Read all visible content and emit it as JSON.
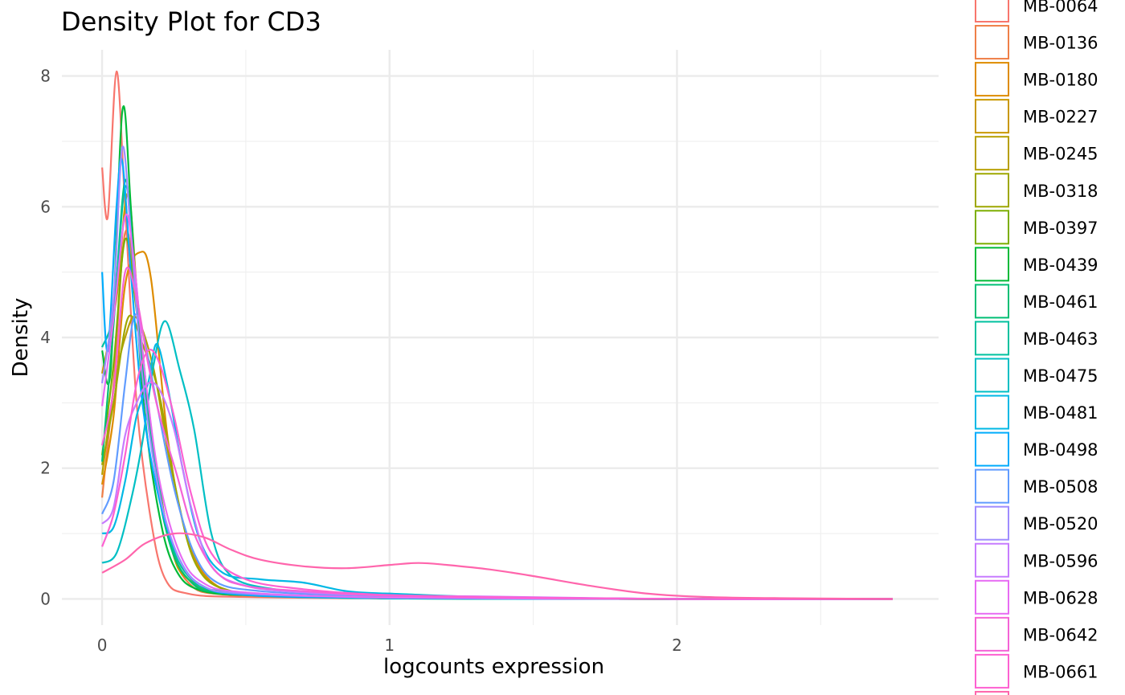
{
  "chart_data": {
    "type": "line",
    "title": "Density Plot for CD3",
    "xlabel": "logcounts expression",
    "ylabel": "Density",
    "xlim": [
      -0.14,
      2.91
    ],
    "ylim": [
      -0.4,
      8.4
    ],
    "x_ticks": [
      0,
      1,
      2
    ],
    "y_ticks": [
      0,
      2,
      4,
      6,
      8
    ],
    "grid": true,
    "legend_position": "right",
    "series": [
      {
        "name": "MB-0064",
        "color": "#F8766D",
        "points": [
          [
            0,
            6.6
          ],
          [
            0.02,
            5.85
          ],
          [
            0.05,
            8.07
          ],
          [
            0.08,
            6.0
          ],
          [
            0.12,
            3.0
          ],
          [
            0.17,
            1.2
          ],
          [
            0.22,
            0.3
          ],
          [
            0.3,
            0.08
          ],
          [
            0.5,
            0.03
          ],
          [
            1.0,
            0.01
          ],
          [
            2.0,
            0.0
          ],
          [
            2.75,
            0.0
          ]
        ]
      },
      {
        "name": "MB-0136",
        "color": "#EF7F48",
        "points": [
          [
            0,
            1.55
          ],
          [
            0.04,
            3.3
          ],
          [
            0.08,
            5.6
          ],
          [
            0.12,
            4.6
          ],
          [
            0.17,
            2.6
          ],
          [
            0.23,
            1.0
          ],
          [
            0.3,
            0.25
          ],
          [
            0.45,
            0.06
          ],
          [
            1.0,
            0.01
          ],
          [
            2.0,
            0.0
          ],
          [
            2.75,
            0.0
          ]
        ]
      },
      {
        "name": "MB-0180",
        "color": "#DE8C00",
        "points": [
          [
            0,
            1.75
          ],
          [
            0.04,
            2.8
          ],
          [
            0.08,
            4.8
          ],
          [
            0.13,
            5.3
          ],
          [
            0.17,
            4.9
          ],
          [
            0.23,
            2.4
          ],
          [
            0.3,
            0.9
          ],
          [
            0.4,
            0.2
          ],
          [
            0.6,
            0.06
          ],
          [
            1.0,
            0.02
          ],
          [
            2.0,
            0.0
          ],
          [
            2.75,
            0.0
          ]
        ]
      },
      {
        "name": "MB-0227",
        "color": "#C99800",
        "points": [
          [
            0,
            3.45
          ],
          [
            0.05,
            4.6
          ],
          [
            0.09,
            6.2
          ],
          [
            0.13,
            4.2
          ],
          [
            0.18,
            2.3
          ],
          [
            0.24,
            0.8
          ],
          [
            0.3,
            0.3
          ],
          [
            0.45,
            0.08
          ],
          [
            1.0,
            0.01
          ],
          [
            2.0,
            0.0
          ],
          [
            2.75,
            0.0
          ]
        ]
      },
      {
        "name": "MB-0245",
        "color": "#B79F00",
        "points": [
          [
            0,
            1.9
          ],
          [
            0.04,
            3.2
          ],
          [
            0.08,
            4.0
          ],
          [
            0.12,
            4.3
          ],
          [
            0.18,
            3.5
          ],
          [
            0.24,
            2.0
          ],
          [
            0.32,
            0.6
          ],
          [
            0.42,
            0.15
          ],
          [
            0.6,
            0.05
          ],
          [
            1.0,
            0.01
          ],
          [
            2.0,
            0.0
          ],
          [
            2.75,
            0.0
          ]
        ]
      },
      {
        "name": "MB-0318",
        "color": "#9EA700",
        "points": [
          [
            0,
            2.05
          ],
          [
            0.04,
            3.0
          ],
          [
            0.09,
            4.3
          ],
          [
            0.14,
            3.9
          ],
          [
            0.2,
            3.1
          ],
          [
            0.26,
            1.6
          ],
          [
            0.33,
            0.5
          ],
          [
            0.45,
            0.12
          ],
          [
            0.7,
            0.04
          ],
          [
            1.0,
            0.01
          ],
          [
            2.0,
            0.0
          ],
          [
            2.75,
            0.0
          ]
        ]
      },
      {
        "name": "MB-0397",
        "color": "#7CAE00",
        "points": [
          [
            0,
            2.2
          ],
          [
            0.04,
            3.6
          ],
          [
            0.08,
            5.5
          ],
          [
            0.12,
            4.4
          ],
          [
            0.17,
            2.6
          ],
          [
            0.23,
            1.0
          ],
          [
            0.3,
            0.3
          ],
          [
            0.45,
            0.08
          ],
          [
            1.0,
            0.01
          ],
          [
            2.0,
            0.0
          ],
          [
            2.75,
            0.0
          ]
        ]
      },
      {
        "name": "MB-0439",
        "color": "#00BA38",
        "points": [
          [
            0,
            3.8
          ],
          [
            0.03,
            3.5
          ],
          [
            0.07,
            7.45
          ],
          [
            0.1,
            6.0
          ],
          [
            0.14,
            3.2
          ],
          [
            0.19,
            1.5
          ],
          [
            0.25,
            0.5
          ],
          [
            0.35,
            0.12
          ],
          [
            0.6,
            0.05
          ],
          [
            1.0,
            0.01
          ],
          [
            2.0,
            0.0
          ],
          [
            2.75,
            0.0
          ]
        ]
      },
      {
        "name": "MB-0461",
        "color": "#00BF74",
        "points": [
          [
            0,
            2.1
          ],
          [
            0.04,
            4.2
          ],
          [
            0.08,
            6.4
          ],
          [
            0.11,
            5.0
          ],
          [
            0.16,
            2.8
          ],
          [
            0.22,
            1.1
          ],
          [
            0.3,
            0.3
          ],
          [
            0.45,
            0.08
          ],
          [
            1.0,
            0.01
          ],
          [
            2.0,
            0.0
          ],
          [
            2.75,
            0.0
          ]
        ]
      },
      {
        "name": "MB-0463",
        "color": "#00C19F",
        "points": [
          [
            0,
            3.85
          ],
          [
            0.04,
            4.4
          ],
          [
            0.08,
            6.3
          ],
          [
            0.11,
            5.2
          ],
          [
            0.16,
            3.0
          ],
          [
            0.22,
            1.2
          ],
          [
            0.3,
            0.35
          ],
          [
            0.45,
            0.1
          ],
          [
            1.0,
            0.01
          ],
          [
            2.0,
            0.0
          ],
          [
            2.75,
            0.0
          ]
        ]
      },
      {
        "name": "MB-0475",
        "color": "#00BFC4",
        "points": [
          [
            0,
            0.55
          ],
          [
            0.05,
            0.7
          ],
          [
            0.1,
            1.5
          ],
          [
            0.14,
            2.4
          ],
          [
            0.18,
            3.6
          ],
          [
            0.22,
            4.25
          ],
          [
            0.27,
            3.5
          ],
          [
            0.32,
            2.6
          ],
          [
            0.38,
            1.0
          ],
          [
            0.45,
            0.35
          ],
          [
            0.6,
            0.15
          ],
          [
            0.8,
            0.1
          ],
          [
            1.0,
            0.08
          ],
          [
            1.4,
            0.02
          ],
          [
            2.0,
            0.0
          ],
          [
            2.75,
            0.0
          ]
        ]
      },
      {
        "name": "MB-0481",
        "color": "#00B8E5",
        "points": [
          [
            0,
            1.0
          ],
          [
            0.04,
            1.1
          ],
          [
            0.08,
            1.8
          ],
          [
            0.12,
            2.8
          ],
          [
            0.16,
            3.3
          ],
          [
            0.19,
            3.9
          ],
          [
            0.23,
            3.2
          ],
          [
            0.28,
            2.0
          ],
          [
            0.34,
            0.9
          ],
          [
            0.42,
            0.4
          ],
          [
            0.55,
            0.3
          ],
          [
            0.7,
            0.25
          ],
          [
            0.85,
            0.12
          ],
          [
            1.0,
            0.08
          ],
          [
            1.3,
            0.03
          ],
          [
            2.0,
            0.0
          ],
          [
            2.75,
            0.0
          ]
        ]
      },
      {
        "name": "MB-0498",
        "color": "#00ACFC",
        "points": [
          [
            0,
            5.0
          ],
          [
            0.02,
            3.8
          ],
          [
            0.05,
            6.0
          ],
          [
            0.07,
            6.7
          ],
          [
            0.1,
            5.0
          ],
          [
            0.14,
            3.0
          ],
          [
            0.2,
            1.5
          ],
          [
            0.27,
            0.6
          ],
          [
            0.35,
            0.2
          ],
          [
            0.5,
            0.06
          ],
          [
            1.0,
            0.01
          ],
          [
            2.0,
            0.0
          ],
          [
            2.75,
            0.0
          ]
        ]
      },
      {
        "name": "MB-0508",
        "color": "#619CFF",
        "points": [
          [
            0,
            1.3
          ],
          [
            0.04,
            1.8
          ],
          [
            0.08,
            3.3
          ],
          [
            0.11,
            4.3
          ],
          [
            0.14,
            4.1
          ],
          [
            0.19,
            3.0
          ],
          [
            0.25,
            1.7
          ],
          [
            0.32,
            0.7
          ],
          [
            0.4,
            0.25
          ],
          [
            0.55,
            0.12
          ],
          [
            0.8,
            0.06
          ],
          [
            1.0,
            0.03
          ],
          [
            2.0,
            0.0
          ],
          [
            2.75,
            0.0
          ]
        ]
      },
      {
        "name": "MB-0520",
        "color": "#9F8CFF",
        "points": [
          [
            0,
            3.3
          ],
          [
            0.04,
            4.6
          ],
          [
            0.07,
            6.9
          ],
          [
            0.1,
            5.6
          ],
          [
            0.14,
            3.4
          ],
          [
            0.2,
            1.6
          ],
          [
            0.27,
            0.6
          ],
          [
            0.35,
            0.2
          ],
          [
            0.5,
            0.08
          ],
          [
            1.0,
            0.02
          ],
          [
            2.0,
            0.0
          ],
          [
            2.75,
            0.0
          ]
        ]
      },
      {
        "name": "MB-0596",
        "color": "#C77CFF",
        "points": [
          [
            0,
            1.15
          ],
          [
            0.04,
            1.4
          ],
          [
            0.08,
            2.5
          ],
          [
            0.12,
            3.0
          ],
          [
            0.16,
            3.3
          ],
          [
            0.2,
            3.2
          ],
          [
            0.25,
            2.6
          ],
          [
            0.31,
            1.4
          ],
          [
            0.38,
            0.5
          ],
          [
            0.5,
            0.2
          ],
          [
            0.7,
            0.1
          ],
          [
            1.0,
            0.05
          ],
          [
            1.3,
            0.04
          ],
          [
            2.0,
            0.0
          ],
          [
            2.75,
            0.0
          ]
        ]
      },
      {
        "name": "MB-0628",
        "color": "#E76BF3",
        "points": [
          [
            0,
            2.95
          ],
          [
            0.04,
            4.3
          ],
          [
            0.08,
            5.85
          ],
          [
            0.11,
            5.2
          ],
          [
            0.15,
            3.4
          ],
          [
            0.2,
            1.8
          ],
          [
            0.27,
            0.7
          ],
          [
            0.35,
            0.25
          ],
          [
            0.5,
            0.1
          ],
          [
            1.0,
            0.02
          ],
          [
            2.0,
            0.0
          ],
          [
            2.75,
            0.0
          ]
        ]
      },
      {
        "name": "MB-0642",
        "color": "#F463D6",
        "points": [
          [
            0,
            2.35
          ],
          [
            0.04,
            3.2
          ],
          [
            0.08,
            5.0
          ],
          [
            0.12,
            4.6
          ],
          [
            0.16,
            3.6
          ],
          [
            0.2,
            2.8
          ],
          [
            0.26,
            1.9
          ],
          [
            0.32,
            1.0
          ],
          [
            0.4,
            0.4
          ],
          [
            0.5,
            0.2
          ],
          [
            0.7,
            0.12
          ],
          [
            1.0,
            0.05
          ],
          [
            1.5,
            0.02
          ],
          [
            2.0,
            0.0
          ],
          [
            2.75,
            0.0
          ]
        ]
      },
      {
        "name": "MB-0661",
        "color": "#FD61D1",
        "points": [
          [
            0,
            0.8
          ],
          [
            0.04,
            1.3
          ],
          [
            0.08,
            2.2
          ],
          [
            0.12,
            3.3
          ],
          [
            0.16,
            3.8
          ],
          [
            0.2,
            3.6
          ],
          [
            0.25,
            2.8
          ],
          [
            0.31,
            1.6
          ],
          [
            0.38,
            0.7
          ],
          [
            0.5,
            0.3
          ],
          [
            0.7,
            0.15
          ],
          [
            1.0,
            0.06
          ],
          [
            1.5,
            0.02
          ],
          [
            2.0,
            0.0
          ],
          [
            2.75,
            0.0
          ]
        ]
      },
      {
        "name": "",
        "color": "#FF65AC",
        "points": [
          [
            0,
            0.4
          ],
          [
            0.08,
            0.6
          ],
          [
            0.15,
            0.85
          ],
          [
            0.25,
            1.0
          ],
          [
            0.35,
            0.95
          ],
          [
            0.45,
            0.75
          ],
          [
            0.55,
            0.6
          ],
          [
            0.7,
            0.5
          ],
          [
            0.85,
            0.47
          ],
          [
            1.0,
            0.52
          ],
          [
            1.1,
            0.55
          ],
          [
            1.2,
            0.52
          ],
          [
            1.35,
            0.45
          ],
          [
            1.5,
            0.35
          ],
          [
            1.7,
            0.2
          ],
          [
            1.9,
            0.08
          ],
          [
            2.1,
            0.03
          ],
          [
            2.4,
            0.01
          ],
          [
            2.75,
            0.0
          ]
        ]
      }
    ]
  }
}
